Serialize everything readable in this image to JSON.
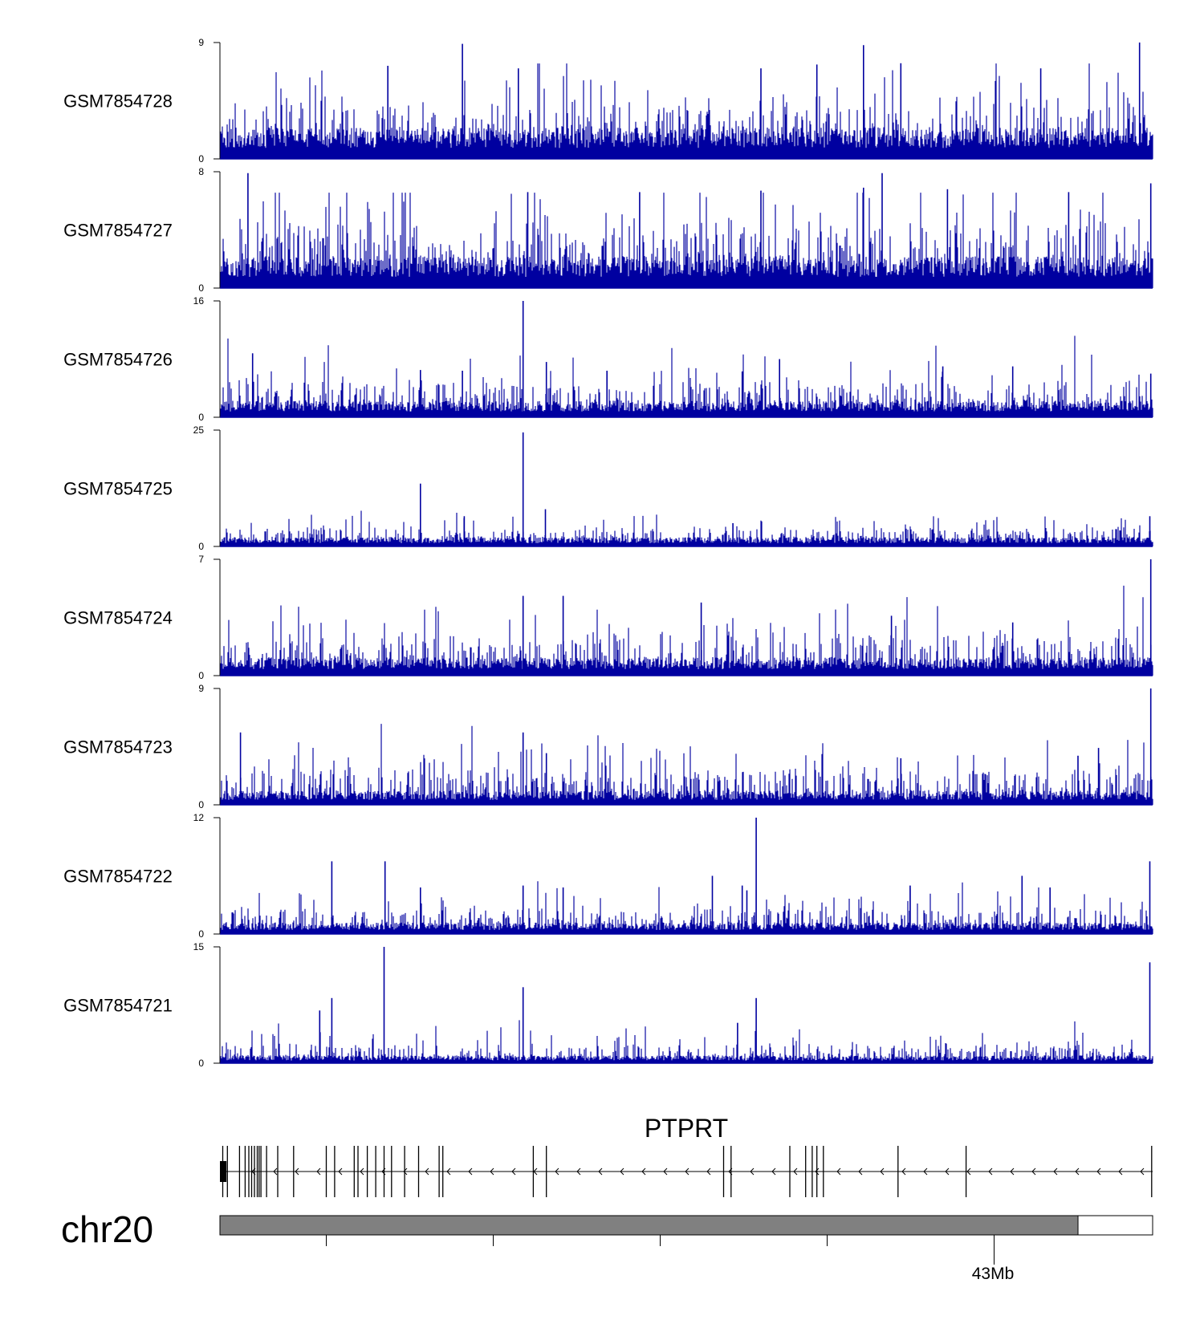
{
  "chart_data": {
    "type": "bar",
    "title": "",
    "chromosome": "chr20",
    "gene": "PTPRT",
    "axis_tick_label": "43Mb",
    "bar_color": "#0000a0",
    "ideogram_color": "#808080",
    "tracks": [
      {
        "name": "GSM7854728",
        "ylim": [
          0,
          9
        ],
        "max_label": "9",
        "min_label": "0",
        "baseline": 2.4,
        "noise": 1.6,
        "seed": 11,
        "peaks": [
          [
            0.18,
            7.2
          ],
          [
            0.26,
            8.9
          ],
          [
            0.32,
            7.0
          ],
          [
            0.58,
            7.0
          ],
          [
            0.64,
            7.3
          ],
          [
            0.69,
            8.8
          ],
          [
            0.73,
            7.4
          ],
          [
            0.88,
            7.0
          ],
          [
            0.986,
            9.0
          ]
        ]
      },
      {
        "name": "GSM7854727",
        "ylim": [
          0,
          8
        ],
        "max_label": "8",
        "min_label": "0",
        "baseline": 2.2,
        "noise": 1.7,
        "seed": 23,
        "peaks": [
          [
            0.03,
            7.9
          ],
          [
            0.33,
            6.6
          ],
          [
            0.45,
            6.6
          ],
          [
            0.58,
            6.7
          ],
          [
            0.69,
            6.9
          ],
          [
            0.71,
            7.9
          ],
          [
            0.78,
            6.8
          ],
          [
            0.91,
            6.6
          ],
          [
            0.998,
            7.2
          ]
        ]
      },
      {
        "name": "GSM7854726",
        "ylim": [
          0,
          16
        ],
        "max_label": "16",
        "min_label": "0",
        "baseline": 2.3,
        "noise": 2.0,
        "seed": 37,
        "peaks": [
          [
            0.035,
            8.8
          ],
          [
            0.215,
            6.5
          ],
          [
            0.26,
            6.4
          ],
          [
            0.325,
            16.0
          ],
          [
            0.35,
            7.6
          ],
          [
            0.415,
            6.4
          ],
          [
            0.56,
            6.3
          ],
          [
            0.6,
            8.0
          ],
          [
            0.775,
            7.0
          ],
          [
            0.85,
            7.0
          ],
          [
            0.998,
            6.0
          ]
        ]
      },
      {
        "name": "GSM7854725",
        "ylim": [
          0,
          25
        ],
        "max_label": "25",
        "min_label": "0",
        "baseline": 2.0,
        "noise": 1.5,
        "seed": 41,
        "peaks": [
          [
            0.215,
            13.5
          ],
          [
            0.262,
            6.5
          ],
          [
            0.325,
            24.5
          ],
          [
            0.349,
            8.0
          ],
          [
            0.55,
            5.0
          ],
          [
            0.997,
            6.5
          ]
        ]
      },
      {
        "name": "GSM7854724",
        "ylim": [
          0,
          7
        ],
        "max_label": "7",
        "min_label": "0",
        "baseline": 1.1,
        "noise": 1.0,
        "seed": 53,
        "peaks": [
          [
            0.325,
            4.8
          ],
          [
            0.368,
            4.8
          ],
          [
            0.516,
            4.4
          ],
          [
            0.72,
            3.6
          ],
          [
            0.85,
            3.2
          ],
          [
            0.998,
            7.0
          ]
        ]
      },
      {
        "name": "GSM7854723",
        "ylim": [
          0,
          9
        ],
        "max_label": "9",
        "min_label": "0",
        "baseline": 1.1,
        "noise": 1.2,
        "seed": 67,
        "peaks": [
          [
            0.022,
            5.6
          ],
          [
            0.325,
            5.6
          ],
          [
            0.35,
            4.0
          ],
          [
            0.73,
            3.6
          ],
          [
            0.92,
            3.8
          ],
          [
            0.942,
            4.4
          ],
          [
            0.998,
            9.0
          ]
        ]
      },
      {
        "name": "GSM7854722",
        "ylim": [
          0,
          12
        ],
        "max_label": "12",
        "min_label": "0",
        "baseline": 1.2,
        "noise": 1.1,
        "seed": 79,
        "peaks": [
          [
            0.12,
            7.5
          ],
          [
            0.177,
            7.5
          ],
          [
            0.215,
            4.8
          ],
          [
            0.325,
            5.0
          ],
          [
            0.368,
            4.8
          ],
          [
            0.528,
            6.0
          ],
          [
            0.56,
            5.0
          ],
          [
            0.565,
            4.5
          ],
          [
            0.575,
            12.0
          ],
          [
            0.74,
            5.0
          ],
          [
            0.86,
            6.0
          ],
          [
            0.89,
            4.8
          ],
          [
            0.997,
            7.5
          ]
        ]
      },
      {
        "name": "GSM7854721",
        "ylim": [
          0,
          15
        ],
        "max_label": "15",
        "min_label": "0",
        "baseline": 1.0,
        "noise": 1.0,
        "seed": 97,
        "peaks": [
          [
            0.107,
            6.8
          ],
          [
            0.12,
            8.4
          ],
          [
            0.176,
            15.0
          ],
          [
            0.325,
            9.8
          ],
          [
            0.555,
            5.2
          ],
          [
            0.575,
            8.4
          ],
          [
            0.997,
            13.0
          ]
        ]
      }
    ],
    "gene_exons": [
      0.003,
      0.008,
      0.021,
      0.027,
      0.031,
      0.034,
      0.037,
      0.04,
      0.042,
      0.044,
      0.05,
      0.062,
      0.079,
      0.114,
      0.123,
      0.144,
      0.148,
      0.158,
      0.167,
      0.176,
      0.184,
      0.198,
      0.213,
      0.235,
      0.239,
      0.336,
      0.35,
      0.54,
      0.548,
      0.611,
      0.628,
      0.635,
      0.64,
      0.647,
      0.727,
      0.8,
      0.999
    ],
    "gene_exon_block": [
      0.0,
      0.007
    ],
    "ideogram_filled_fraction": 0.92,
    "axis_ticks": [
      0.114,
      0.293,
      0.472,
      0.651,
      0.83
    ],
    "axis_label_tick_index": 4
  }
}
